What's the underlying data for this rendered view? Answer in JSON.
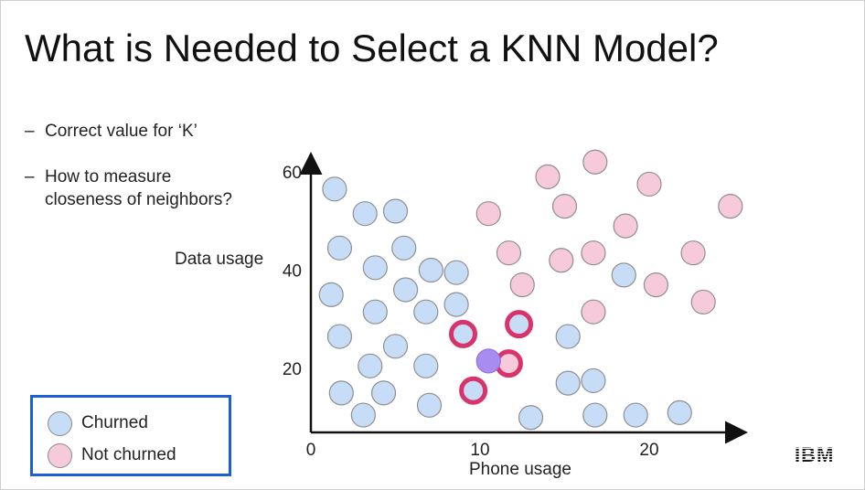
{
  "slide": {
    "title": "What is Needed to Select a KNN Model?",
    "bullets": [
      {
        "dash": "–",
        "lines": [
          "Correct value for ‘K’"
        ]
      },
      {
        "dash": "–",
        "lines": [
          "How to measure",
          "closeness of neighbors?"
        ]
      }
    ],
    "logo": "IBM"
  },
  "legend": {
    "items": [
      {
        "label": "Churned",
        "color": "#c7dcf6"
      },
      {
        "label": "Not churned",
        "color": "#f6cadb"
      }
    ],
    "border_color": "#1f5fd6"
  },
  "chart_data": {
    "type": "scatter",
    "title": "",
    "xlabel": "Phone usage",
    "ylabel": "Data usage",
    "xlim": [
      0,
      25
    ],
    "ylim": [
      5,
      60
    ],
    "xticks": [
      0,
      10,
      20
    ],
    "yticks": [
      20,
      40,
      60
    ],
    "grid": false,
    "legend_position": "bottom-left",
    "colors": {
      "churned": "#c7dcf6",
      "not_churned": "#f6cadb",
      "query": "#a98cf0",
      "highlight": "#d8336a",
      "outline": "#8f8f8f"
    },
    "query_point": {
      "x": 10.5,
      "y": 21.5
    },
    "series": [
      {
        "name": "Churned",
        "points": [
          [
            1.4,
            56.5
          ],
          [
            3.2,
            51.5
          ],
          [
            5.0,
            52
          ],
          [
            1.7,
            44.5
          ],
          [
            5.5,
            44.5
          ],
          [
            3.8,
            40.5
          ],
          [
            7.1,
            40
          ],
          [
            8.6,
            39.5
          ],
          [
            1.2,
            35
          ],
          [
            5.6,
            36
          ],
          [
            3.8,
            31.5
          ],
          [
            6.8,
            31.5
          ],
          [
            8.6,
            33
          ],
          [
            1.7,
            26.5
          ],
          [
            5.0,
            24.5
          ],
          [
            3.5,
            20.5
          ],
          [
            6.8,
            20.5
          ],
          [
            9.0,
            27
          ],
          [
            12.3,
            29
          ],
          [
            15.2,
            26.5
          ],
          [
            18.5,
            39
          ],
          [
            1.8,
            15
          ],
          [
            4.3,
            15
          ],
          [
            7.0,
            12.5
          ],
          [
            3.1,
            10.5
          ],
          [
            9.6,
            15.5
          ],
          [
            13.0,
            10
          ],
          [
            15.2,
            17
          ],
          [
            16.7,
            17.5
          ],
          [
            16.8,
            10.5
          ],
          [
            19.2,
            10.5
          ],
          [
            21.8,
            11
          ]
        ]
      },
      {
        "name": "Not churned",
        "points": [
          [
            14.0,
            59
          ],
          [
            16.8,
            62
          ],
          [
            10.5,
            51.5
          ],
          [
            15.0,
            53
          ],
          [
            20.0,
            57.5
          ],
          [
            18.6,
            49
          ],
          [
            24.8,
            53
          ],
          [
            11.7,
            43.5
          ],
          [
            14.8,
            42
          ],
          [
            16.7,
            43.5
          ],
          [
            22.6,
            43.5
          ],
          [
            12.5,
            37
          ],
          [
            20.4,
            37
          ],
          [
            16.7,
            31.5
          ],
          [
            23.2,
            33.5
          ],
          [
            11.7,
            21
          ]
        ]
      }
    ],
    "highlighted_neighbors": [
      [
        9.0,
        27
      ],
      [
        12.3,
        29
      ],
      [
        11.7,
        21
      ],
      [
        9.6,
        15.5
      ]
    ]
  }
}
